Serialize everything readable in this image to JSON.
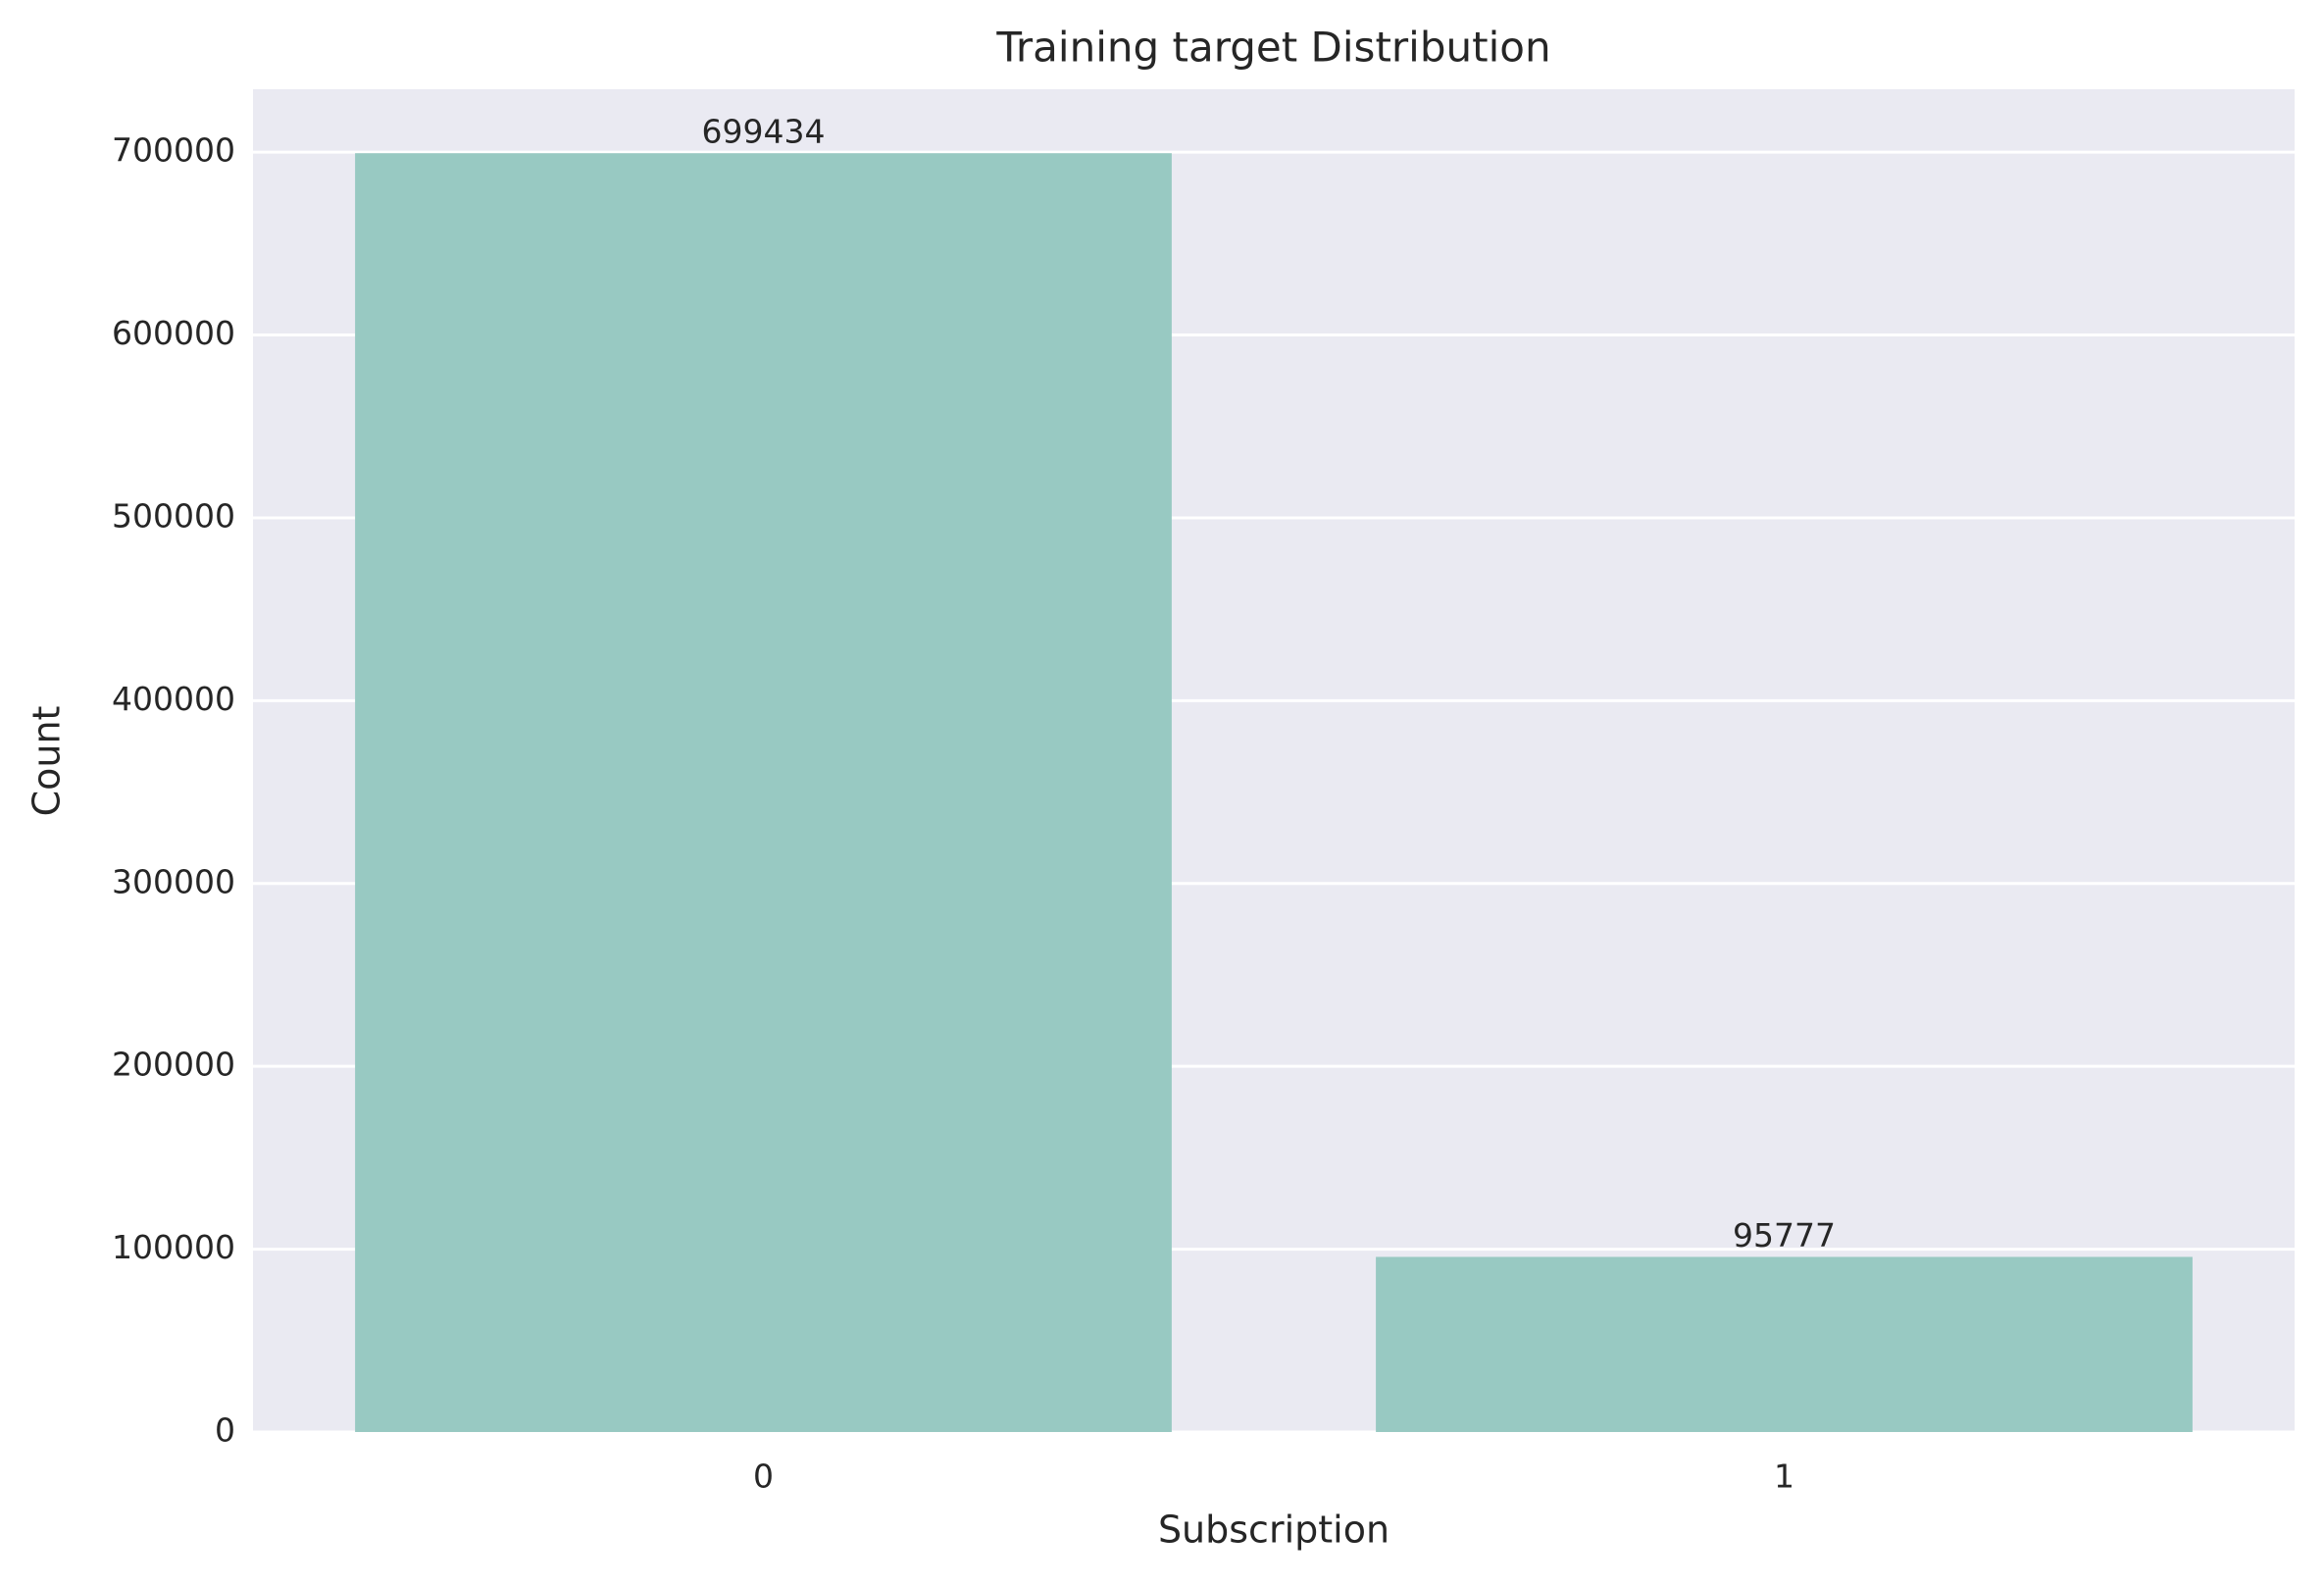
{
  "chart_data": {
    "type": "bar",
    "title": "Training target Distribution",
    "x_label": "Subscription",
    "y_label": "Count",
    "categories": [
      "0",
      "1"
    ],
    "values": [
      699434,
      95777
    ],
    "color": "#98c9c2",
    "ylim": [
      0,
      734406
    ],
    "yticks": [
      0,
      100000,
      200000,
      300000,
      400000,
      500000,
      600000,
      700000
    ],
    "grid": true
  }
}
